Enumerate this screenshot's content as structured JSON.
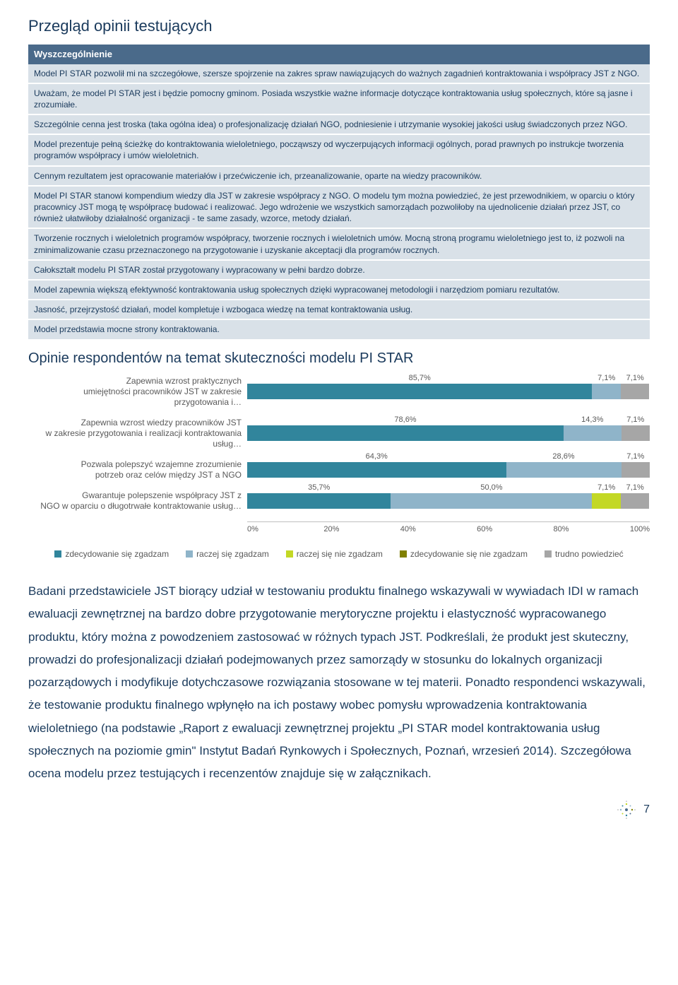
{
  "colors": {
    "header_bg": "#4a6a8a",
    "row_bg": "#d9e1e8",
    "text_dark": "#1a3a5c",
    "zdec_tak": "#31859c",
    "raczej_tak": "#8fb4c9",
    "raczej_nie": "#c3d825",
    "zdec_nie": "#808000",
    "trudno": "#a6a6a6"
  },
  "title": "Przegląd opinii testujących",
  "table_header": "Wyszczególnienie",
  "opinions": [
    "Model PI STAR pozwolił mi na szczegółowe, szersze spojrzenie na zakres spraw nawiązujących do ważnych zagadnień kontraktowania i współpracy JST z NGO.",
    "Uważam, że model PI STAR jest i będzie pomocny gminom. Posiada wszystkie ważne informacje dotyczące kontraktowania usług społecznych, które są jasne i zrozumiałe.",
    "Szczególnie cenna jest troska (taka ogólna idea) o profesjonalizację działań NGO, podniesienie i utrzymanie wysokiej jakości usług świadczonych przez NGO.",
    "Model prezentuje pełną ścieżkę do kontraktowania wieloletniego, począwszy od wyczerpujących informacji ogólnych, porad prawnych po instrukcje tworzenia programów współpracy i umów wieloletnich.",
    "Cennym rezultatem jest opracowanie materiałów i przećwiczenie ich, przeanalizowanie, oparte na wiedzy pracowników.",
    "Model PI STAR stanowi kompendium wiedzy dla JST w zakresie współpracy z NGO. O modelu tym można powiedzieć, że jest przewodnikiem, w oparciu o który pracownicy JST mogą tę współpracę budować i realizować. Jego wdrożenie we wszystkich samorządach pozwoliłoby na ujednolicenie działań przez JST, co również ułatwiłoby działalność organizacji - te same zasady, wzorce, metody działań.",
    "Tworzenie rocznych i wieloletnich programów współpracy, tworzenie rocznych i wieloletnich umów. Mocną stroną programu wieloletniego jest to, iż pozwoli na zminimalizowanie czasu przeznaczonego na przygotowanie i uzyskanie akceptacji dla programów rocznych.",
    "Całokształt modelu PI STAR został przygotowany i wypracowany w pełni bardzo dobrze.",
    "Model zapewnia większą efektywność kontraktowania usług społecznych dzięki wypracowanej metodologii i narzędziom pomiaru rezultatów.",
    "Jasność, przejrzystość działań, model kompletuje i wzbogaca wiedzę na temat kontraktowania usług.",
    "Model przedstawia mocne strony kontraktowania."
  ],
  "chart_title": "Opinie respondentów na temat skuteczności modelu PI STAR",
  "chart": {
    "rows": [
      {
        "label": "Zapewnia wzrost praktycznych\numiejętności pracowników JST w zakresie przygotowania i…",
        "segments": [
          {
            "key": "zdec_tak",
            "value": 85.7,
            "label": "85,7%"
          },
          {
            "key": "raczej_tak",
            "value": 7.1,
            "label": "7,1%"
          },
          {
            "key": "trudno",
            "value": 7.1,
            "label": "7,1%"
          }
        ]
      },
      {
        "label": "Zapewnia wzrost wiedzy pracowników JST\nw zakresie przygotowania i realizacji kontraktowania usług…",
        "segments": [
          {
            "key": "zdec_tak",
            "value": 78.6,
            "label": "78,6%"
          },
          {
            "key": "raczej_tak",
            "value": 14.3,
            "label": "14,3%"
          },
          {
            "key": "trudno",
            "value": 7.1,
            "label": "7,1%"
          }
        ]
      },
      {
        "label": "Pozwala polepszyć wzajemne zrozumienie\npotrzeb oraz celów między JST a NGO",
        "segments": [
          {
            "key": "zdec_tak",
            "value": 64.3,
            "label": "64,3%"
          },
          {
            "key": "raczej_tak",
            "value": 28.6,
            "label": "28,6%"
          },
          {
            "key": "trudno",
            "value": 7.1,
            "label": "7,1%"
          }
        ]
      },
      {
        "label": "Gwarantuje polepszenie współpracy JST z\nNGO w oparciu o długotrwałe kontraktowanie usług…",
        "segments": [
          {
            "key": "zdec_tak",
            "value": 35.7,
            "label": "35,7%"
          },
          {
            "key": "raczej_tak",
            "value": 50.0,
            "label": "50,0%"
          },
          {
            "key": "raczej_nie",
            "value": 7.1,
            "label": "7,1%"
          },
          {
            "key": "trudno",
            "value": 7.1,
            "label": "7,1%"
          }
        ]
      }
    ],
    "axis": [
      "0%",
      "20%",
      "40%",
      "60%",
      "80%",
      "100%"
    ],
    "legend": [
      {
        "key": "zdec_tak",
        "label": "zdecydowanie się zgadzam"
      },
      {
        "key": "raczej_tak",
        "label": "raczej się zgadzam"
      },
      {
        "key": "raczej_nie",
        "label": "raczej się nie zgadzam"
      },
      {
        "key": "zdec_nie",
        "label": "zdecydowanie się nie zgadzam"
      },
      {
        "key": "trudno",
        "label": "trudno powiedzieć"
      }
    ]
  },
  "body_text": "Badani przedstawiciele JST biorący udział w testowaniu produktu finalnego wskazywali w wywiadach IDI w ramach ewaluacji zewnętrznej na bardzo dobre przygotowanie merytoryczne projektu i elastyczność wypracowanego produktu, który można z powodzeniem zastosować w różnych typach JST. Podkreślali, że produkt jest skuteczny, prowadzi do profesjonalizacji działań podejmowanych przez samorządy w stosunku do lokalnych organizacji pozarządowych i modyfikuje dotychczasowe rozwiązania stosowane w tej materii. Ponadto respondenci wskazywali, że testowanie produktu finalnego wpłynęło na ich postawy wobec pomysłu wprowadzenia kontraktowania wieloletniego (na podstawie „Raport z ewaluacji zewnętrznej projektu „PI STAR model kontraktowania usług społecznych na poziomie gmin\" Instytut Badań Rynkowych i Społecznych, Poznań, wrzesień 2014). Szczegółowa ocena modelu przez testujących i recenzentów znajduje się w załącznikach.",
  "page_number": "7"
}
